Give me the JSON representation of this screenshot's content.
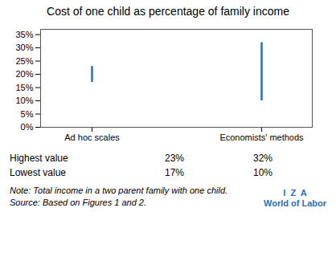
{
  "chart_data": {
    "type": "range_bar",
    "title": "Cost of one child as percentage of family income",
    "categories": [
      "Ad hoc scales",
      "Economists' methods"
    ],
    "series": [
      {
        "name": "Highest value",
        "values": [
          23,
          32
        ],
        "value_labels": [
          "23%",
          "32%"
        ]
      },
      {
        "name": "Lowest value",
        "values": [
          17,
          10
        ],
        "value_labels": [
          "17%",
          "10%"
        ]
      }
    ],
    "color": "#2A6EBB",
    "ylim": [
      0,
      37
    ],
    "yticks": [
      {
        "value": 0,
        "label": "0%"
      },
      {
        "value": 5,
        "label": "5%"
      },
      {
        "value": 10,
        "label": "10%"
      },
      {
        "value": 15,
        "label": "15%"
      },
      {
        "value": 20,
        "label": "20%"
      },
      {
        "value": 25,
        "label": "25%"
      },
      {
        "value": 30,
        "label": "30%"
      },
      {
        "value": 35,
        "label": "35%"
      }
    ],
    "grid": false,
    "annotations": [
      "Note: Total income in a two parent family with one child.",
      "Source: Based on Figures 1 and 2.",
      "I  Z  A",
      "World of Labor"
    ]
  }
}
